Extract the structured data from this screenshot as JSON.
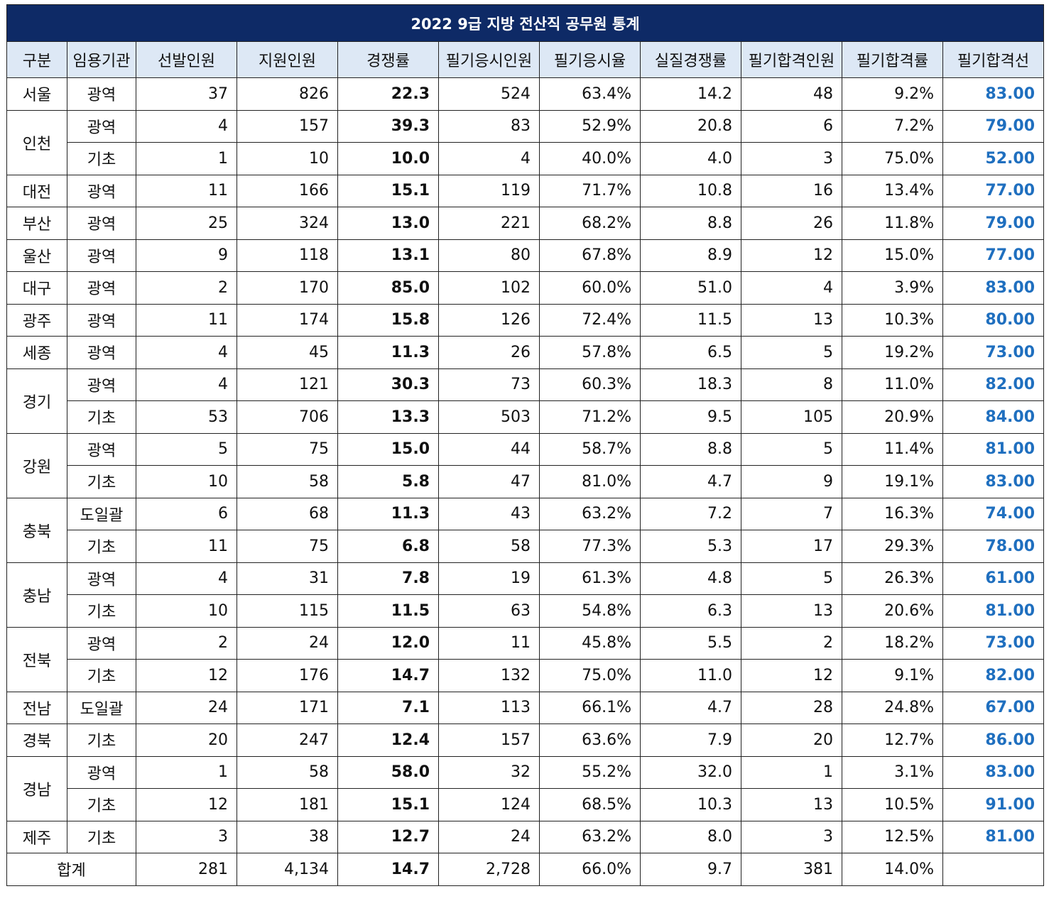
{
  "title": "2022 9급 지방 전산직 공무원 통계",
  "headers": [
    "구분",
    "임용기관",
    "선발인원",
    "지원인원",
    "경쟁률",
    "필기응시인원",
    "필기응시율",
    "실질경쟁률",
    "필기합격인원",
    "필기합격률",
    "필기합격선"
  ],
  "rows": [
    {
      "region": "서울",
      "span": 1,
      "org": "광역",
      "sel": "37",
      "app": "826",
      "comp": "22.3",
      "take": "524",
      "take_rate": "63.4%",
      "real": "14.2",
      "pass": "48",
      "pass_rate": "9.2%",
      "cut": "83.00"
    },
    {
      "region": "인천",
      "span": 2,
      "org": "광역",
      "sel": "4",
      "app": "157",
      "comp": "39.3",
      "take": "83",
      "take_rate": "52.9%",
      "real": "20.8",
      "pass": "6",
      "pass_rate": "7.2%",
      "cut": "79.00"
    },
    {
      "region": "",
      "span": 0,
      "org": "기초",
      "sel": "1",
      "app": "10",
      "comp": "10.0",
      "take": "4",
      "take_rate": "40.0%",
      "real": "4.0",
      "pass": "3",
      "pass_rate": "75.0%",
      "cut": "52.00"
    },
    {
      "region": "대전",
      "span": 1,
      "org": "광역",
      "sel": "11",
      "app": "166",
      "comp": "15.1",
      "take": "119",
      "take_rate": "71.7%",
      "real": "10.8",
      "pass": "16",
      "pass_rate": "13.4%",
      "cut": "77.00"
    },
    {
      "region": "부산",
      "span": 1,
      "org": "광역",
      "sel": "25",
      "app": "324",
      "comp": "13.0",
      "take": "221",
      "take_rate": "68.2%",
      "real": "8.8",
      "pass": "26",
      "pass_rate": "11.8%",
      "cut": "79.00"
    },
    {
      "region": "울산",
      "span": 1,
      "org": "광역",
      "sel": "9",
      "app": "118",
      "comp": "13.1",
      "take": "80",
      "take_rate": "67.8%",
      "real": "8.9",
      "pass": "12",
      "pass_rate": "15.0%",
      "cut": "77.00"
    },
    {
      "region": "대구",
      "span": 1,
      "org": "광역",
      "sel": "2",
      "app": "170",
      "comp": "85.0",
      "take": "102",
      "take_rate": "60.0%",
      "real": "51.0",
      "pass": "4",
      "pass_rate": "3.9%",
      "cut": "83.00"
    },
    {
      "region": "광주",
      "span": 1,
      "org": "광역",
      "sel": "11",
      "app": "174",
      "comp": "15.8",
      "take": "126",
      "take_rate": "72.4%",
      "real": "11.5",
      "pass": "13",
      "pass_rate": "10.3%",
      "cut": "80.00"
    },
    {
      "region": "세종",
      "span": 1,
      "org": "광역",
      "sel": "4",
      "app": "45",
      "comp": "11.3",
      "take": "26",
      "take_rate": "57.8%",
      "real": "6.5",
      "pass": "5",
      "pass_rate": "19.2%",
      "cut": "73.00"
    },
    {
      "region": "경기",
      "span": 2,
      "org": "광역",
      "sel": "4",
      "app": "121",
      "comp": "30.3",
      "take": "73",
      "take_rate": "60.3%",
      "real": "18.3",
      "pass": "8",
      "pass_rate": "11.0%",
      "cut": "82.00"
    },
    {
      "region": "",
      "span": 0,
      "org": "기초",
      "sel": "53",
      "app": "706",
      "comp": "13.3",
      "take": "503",
      "take_rate": "71.2%",
      "real": "9.5",
      "pass": "105",
      "pass_rate": "20.9%",
      "cut": "84.00"
    },
    {
      "region": "강원",
      "span": 2,
      "org": "광역",
      "sel": "5",
      "app": "75",
      "comp": "15.0",
      "take": "44",
      "take_rate": "58.7%",
      "real": "8.8",
      "pass": "5",
      "pass_rate": "11.4%",
      "cut": "81.00"
    },
    {
      "region": "",
      "span": 0,
      "org": "기초",
      "sel": "10",
      "app": "58",
      "comp": "5.8",
      "take": "47",
      "take_rate": "81.0%",
      "real": "4.7",
      "pass": "9",
      "pass_rate": "19.1%",
      "cut": "83.00"
    },
    {
      "region": "충북",
      "span": 2,
      "org": "도일괄",
      "sel": "6",
      "app": "68",
      "comp": "11.3",
      "take": "43",
      "take_rate": "63.2%",
      "real": "7.2",
      "pass": "7",
      "pass_rate": "16.3%",
      "cut": "74.00"
    },
    {
      "region": "",
      "span": 0,
      "org": "기초",
      "sel": "11",
      "app": "75",
      "comp": "6.8",
      "take": "58",
      "take_rate": "77.3%",
      "real": "5.3",
      "pass": "17",
      "pass_rate": "29.3%",
      "cut": "78.00"
    },
    {
      "region": "충남",
      "span": 2,
      "org": "광역",
      "sel": "4",
      "app": "31",
      "comp": "7.8",
      "take": "19",
      "take_rate": "61.3%",
      "real": "4.8",
      "pass": "5",
      "pass_rate": "26.3%",
      "cut": "61.00"
    },
    {
      "region": "",
      "span": 0,
      "org": "기초",
      "sel": "10",
      "app": "115",
      "comp": "11.5",
      "take": "63",
      "take_rate": "54.8%",
      "real": "6.3",
      "pass": "13",
      "pass_rate": "20.6%",
      "cut": "81.00"
    },
    {
      "region": "전북",
      "span": 2,
      "org": "광역",
      "sel": "2",
      "app": "24",
      "comp": "12.0",
      "take": "11",
      "take_rate": "45.8%",
      "real": "5.5",
      "pass": "2",
      "pass_rate": "18.2%",
      "cut": "73.00"
    },
    {
      "region": "",
      "span": 0,
      "org": "기초",
      "sel": "12",
      "app": "176",
      "comp": "14.7",
      "take": "132",
      "take_rate": "75.0%",
      "real": "11.0",
      "pass": "12",
      "pass_rate": "9.1%",
      "cut": "82.00"
    },
    {
      "region": "전남",
      "span": 1,
      "org": "도일괄",
      "sel": "24",
      "app": "171",
      "comp": "7.1",
      "take": "113",
      "take_rate": "66.1%",
      "real": "4.7",
      "pass": "28",
      "pass_rate": "24.8%",
      "cut": "67.00"
    },
    {
      "region": "경북",
      "span": 1,
      "org": "기초",
      "sel": "20",
      "app": "247",
      "comp": "12.4",
      "take": "157",
      "take_rate": "63.6%",
      "real": "7.9",
      "pass": "20",
      "pass_rate": "12.7%",
      "cut": "86.00"
    },
    {
      "region": "경남",
      "span": 2,
      "org": "광역",
      "sel": "1",
      "app": "58",
      "comp": "58.0",
      "take": "32",
      "take_rate": "55.2%",
      "real": "32.0",
      "pass": "1",
      "pass_rate": "3.1%",
      "cut": "83.00"
    },
    {
      "region": "",
      "span": 0,
      "org": "기초",
      "sel": "12",
      "app": "181",
      "comp": "15.1",
      "take": "124",
      "take_rate": "68.5%",
      "real": "10.3",
      "pass": "13",
      "pass_rate": "10.5%",
      "cut": "91.00"
    },
    {
      "region": "제주",
      "span": 1,
      "org": "기초",
      "sel": "3",
      "app": "38",
      "comp": "12.7",
      "take": "24",
      "take_rate": "63.2%",
      "real": "8.0",
      "pass": "3",
      "pass_rate": "12.5%",
      "cut": "81.00"
    }
  ],
  "total": {
    "label": "합계",
    "sel": "281",
    "app": "4,134",
    "comp": "14.7",
    "take": "2,728",
    "take_rate": "66.0%",
    "real": "9.7",
    "pass": "381",
    "pass_rate": "14.0%",
    "cut": ""
  },
  "colors": {
    "title_bg": "#0e2a66",
    "header_bg": "#dde8f5",
    "cutoff_text": "#1f6fbf"
  }
}
